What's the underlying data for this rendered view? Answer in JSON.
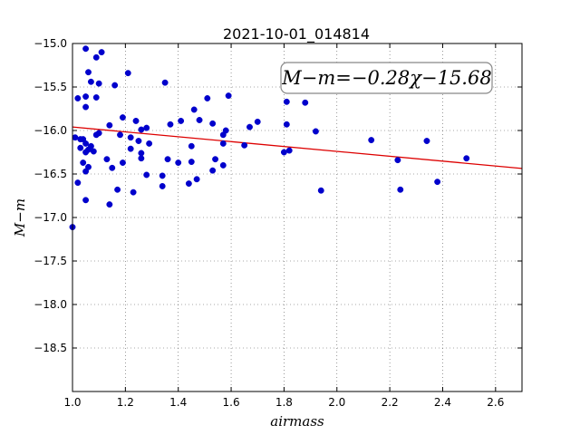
{
  "chart_data": {
    "type": "scatter",
    "title": "2021-10-01_014814",
    "xlabel": "airmass",
    "ylabel": "M−m",
    "xlim": [
      1.0,
      2.7
    ],
    "ylim": [
      -19.0,
      -15.0
    ],
    "y_inverted": true,
    "grid": true,
    "xticks": [
      1.0,
      1.2,
      1.4,
      1.6,
      1.8,
      2.0,
      2.2,
      2.4,
      2.6
    ],
    "xtick_labels": [
      "1.0",
      "1.2",
      "1.4",
      "1.6",
      "1.8",
      "2.0",
      "2.2",
      "2.4",
      "2.6"
    ],
    "yticks": [
      -15.0,
      -15.5,
      -16.0,
      -16.5,
      -17.0,
      -17.5,
      -18.0,
      -18.5
    ],
    "ytick_labels": [
      "−15.0",
      "−15.5",
      "−16.0",
      "−16.5",
      "−17.0",
      "−17.5",
      "−18.0",
      "−18.5"
    ],
    "annotation": "M−m=−0.28χ−15.68",
    "fit": {
      "slope": -0.28,
      "intercept": -15.68,
      "color": "#dd0000"
    },
    "point_color": "#0000cc",
    "points": [
      [
        1.0,
        -17.11
      ],
      [
        1.01,
        -16.08
      ],
      [
        1.02,
        -15.63
      ],
      [
        1.02,
        -16.6
      ],
      [
        1.03,
        -16.1
      ],
      [
        1.03,
        -16.2
      ],
      [
        1.04,
        -16.1
      ],
      [
        1.04,
        -16.37
      ],
      [
        1.05,
        -15.06
      ],
      [
        1.05,
        -15.61
      ],
      [
        1.05,
        -15.73
      ],
      [
        1.05,
        -16.15
      ],
      [
        1.05,
        -16.25
      ],
      [
        1.05,
        -16.47
      ],
      [
        1.05,
        -16.8
      ],
      [
        1.06,
        -16.42
      ],
      [
        1.06,
        -16.22
      ],
      [
        1.06,
        -15.33
      ],
      [
        1.07,
        -15.44
      ],
      [
        1.07,
        -16.18
      ],
      [
        1.08,
        -16.24
      ],
      [
        1.09,
        -15.16
      ],
      [
        1.09,
        -15.62
      ],
      [
        1.09,
        -16.05
      ],
      [
        1.1,
        -15.46
      ],
      [
        1.1,
        -16.03
      ],
      [
        1.11,
        -15.1
      ],
      [
        1.13,
        -16.33
      ],
      [
        1.14,
        -15.94
      ],
      [
        1.14,
        -16.85
      ],
      [
        1.15,
        -16.43
      ],
      [
        1.16,
        -15.48
      ],
      [
        1.17,
        -16.68
      ],
      [
        1.18,
        -16.05
      ],
      [
        1.19,
        -15.85
      ],
      [
        1.19,
        -16.37
      ],
      [
        1.21,
        -15.34
      ],
      [
        1.22,
        -16.08
      ],
      [
        1.22,
        -16.21
      ],
      [
        1.23,
        -16.71
      ],
      [
        1.24,
        -15.89
      ],
      [
        1.25,
        -16.12
      ],
      [
        1.26,
        -15.99
      ],
      [
        1.26,
        -16.26
      ],
      [
        1.26,
        -16.32
      ],
      [
        1.28,
        -15.97
      ],
      [
        1.28,
        -16.51
      ],
      [
        1.29,
        -16.15
      ],
      [
        1.34,
        -16.52
      ],
      [
        1.34,
        -16.64
      ],
      [
        1.35,
        -15.45
      ],
      [
        1.36,
        -16.33
      ],
      [
        1.37,
        -15.93
      ],
      [
        1.4,
        -16.37
      ],
      [
        1.41,
        -15.89
      ],
      [
        1.44,
        -16.61
      ],
      [
        1.45,
        -16.36
      ],
      [
        1.45,
        -16.18
      ],
      [
        1.46,
        -15.76
      ],
      [
        1.47,
        -16.56
      ],
      [
        1.48,
        -15.88
      ],
      [
        1.51,
        -15.63
      ],
      [
        1.53,
        -16.46
      ],
      [
        1.53,
        -15.92
      ],
      [
        1.54,
        -16.33
      ],
      [
        1.57,
        -16.05
      ],
      [
        1.57,
        -16.4
      ],
      [
        1.57,
        -16.15
      ],
      [
        1.58,
        -16.0
      ],
      [
        1.59,
        -15.6
      ],
      [
        1.65,
        -16.17
      ],
      [
        1.67,
        -15.96
      ],
      [
        1.7,
        -15.9
      ],
      [
        1.8,
        -16.25
      ],
      [
        1.81,
        -15.67
      ],
      [
        1.81,
        -15.93
      ],
      [
        1.82,
        -16.23
      ],
      [
        1.88,
        -15.68
      ],
      [
        1.92,
        -16.01
      ],
      [
        1.94,
        -16.69
      ],
      [
        2.13,
        -16.11
      ],
      [
        2.23,
        -16.34
      ],
      [
        2.24,
        -16.68
      ],
      [
        2.34,
        -16.12
      ],
      [
        2.38,
        -16.59
      ],
      [
        2.49,
        -16.32
      ]
    ]
  }
}
